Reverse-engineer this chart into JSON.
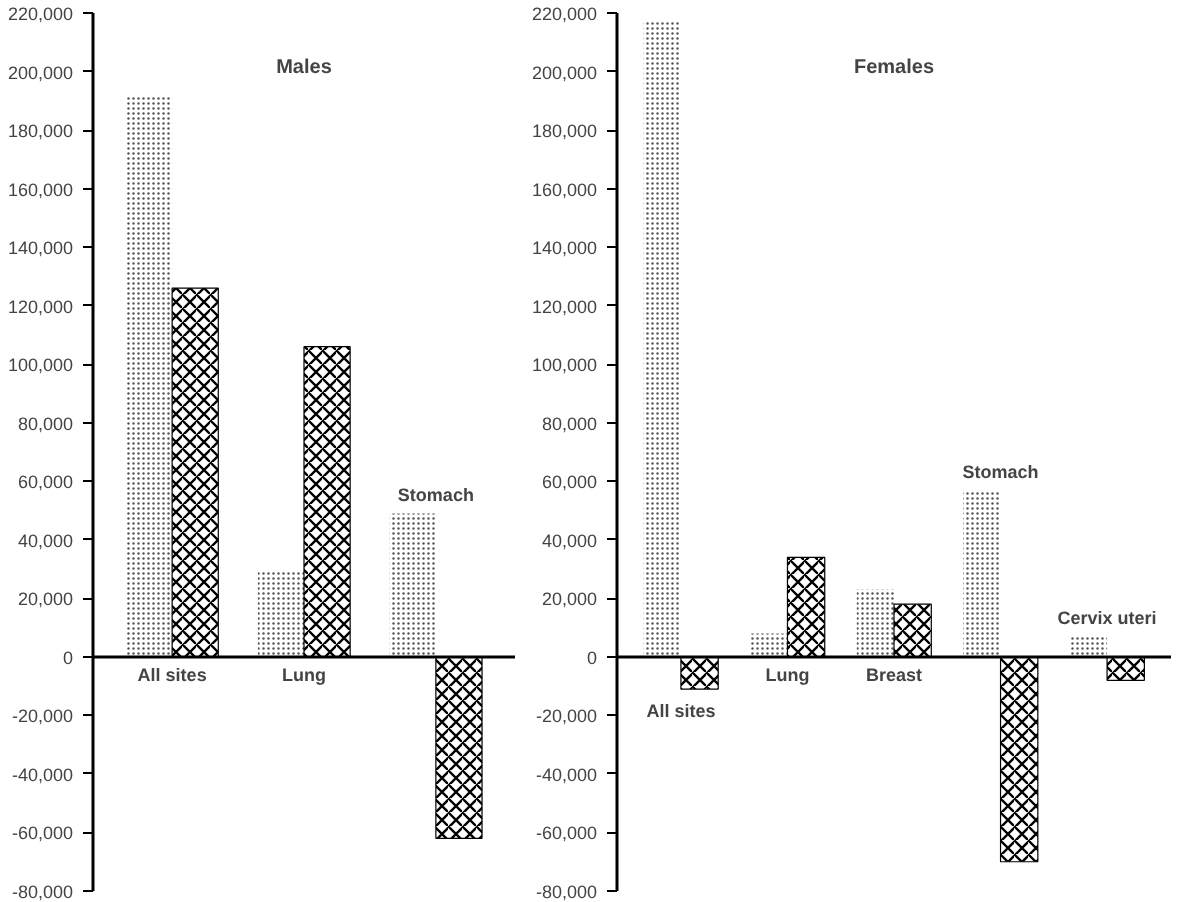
{
  "chart_data": [
    {
      "type": "bar",
      "title": "Males",
      "categories": [
        "All sites",
        "Lung",
        "Stomach"
      ],
      "series": [
        {
          "color": "#555555",
          "values": [
            192000,
            29000,
            49000
          ]
        },
        {
          "color": "#000000",
          "values": [
            126000,
            106000,
            -62000
          ]
        }
      ],
      "ylim": [
        -80000,
        220000
      ],
      "yticks": [
        {
          "value": -80000,
          "label": "-80,000"
        },
        {
          "value": -60000,
          "label": "-60,000"
        },
        {
          "value": -40000,
          "label": "-40,000"
        },
        {
          "value": -20000,
          "label": "-20,000"
        },
        0,
        {
          "value": 20000,
          "label": "20,000"
        },
        {
          "value": 40000,
          "label": "40,000"
        },
        {
          "value": 60000,
          "label": "60,000"
        },
        {
          "value": 80000,
          "label": "80,000"
        },
        {
          "value": 100000,
          "label": "100,000"
        },
        {
          "value": 120000,
          "label": "120,000"
        },
        {
          "value": 140000,
          "label": "140,000"
        },
        {
          "value": 160000,
          "label": "160,000"
        },
        {
          "value": 180000,
          "label": "180,000"
        },
        {
          "value": 200000,
          "label": "200,000"
        },
        {
          "value": 220000,
          "label": "220,000"
        }
      ],
      "grid": false
    },
    {
      "type": "bar",
      "title": "Females",
      "categories": [
        "All sites",
        "Lung",
        "Breast",
        "Stomach",
        "Cervix uteri"
      ],
      "series": [
        {
          "color": "#555555",
          "values": [
            217000,
            8000,
            23000,
            57000,
            7000
          ]
        },
        {
          "color": "#000000",
          "values": [
            -11000,
            34000,
            18000,
            -70000,
            -8000
          ]
        }
      ],
      "ylim": [
        -80000,
        220000
      ],
      "yticks": [
        {
          "value": -80000,
          "label": "-80,000"
        },
        {
          "value": -60000,
          "label": "-60,000"
        },
        {
          "value": -40000,
          "label": "-40,000"
        },
        {
          "value": -20000,
          "label": "-20,000"
        },
        0,
        {
          "value": 20000,
          "label": "20,000"
        },
        {
          "value": 40000,
          "label": "40,000"
        },
        {
          "value": 60000,
          "label": "60,000"
        },
        {
          "value": 80000,
          "label": "80,000"
        },
        {
          "value": 100000,
          "label": "100,000"
        },
        {
          "value": 120000,
          "label": "120,000"
        },
        {
          "value": 140000,
          "label": "140,000"
        },
        {
          "value": 160000,
          "label": "160,000"
        },
        {
          "value": 180000,
          "label": "180,000"
        },
        {
          "value": 200000,
          "label": "200,000"
        },
        {
          "value": 220000,
          "label": "220,000"
        }
      ],
      "grid": false
    }
  ]
}
